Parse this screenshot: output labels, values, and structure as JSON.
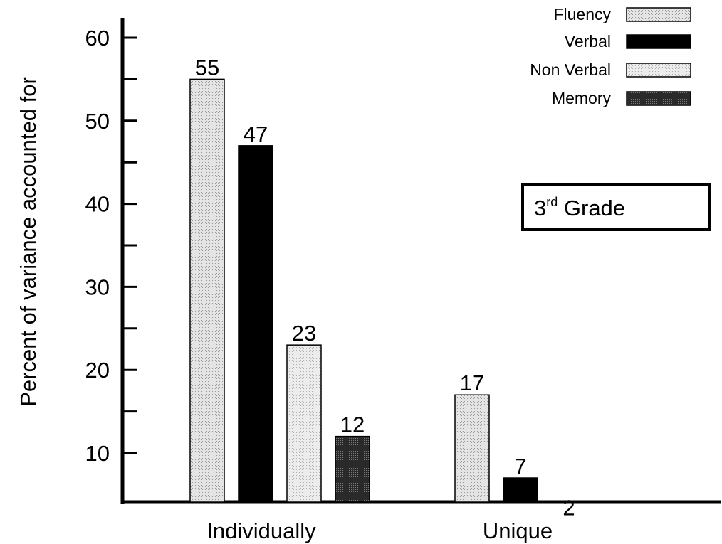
{
  "chart_data": {
    "type": "bar",
    "categories": [
      "Individually",
      "Unique"
    ],
    "ylabel": "Percent of variance accounted for",
    "xlabel": "",
    "ylim": [
      5,
      63
    ],
    "yticks": [
      10,
      20,
      30,
      40,
      50,
      60
    ],
    "grid": false,
    "legend_position": "top-right",
    "series": [
      {
        "name": "Fluency",
        "values": [
          55,
          17
        ],
        "pattern": "light-stipple",
        "color": "#d6d6d6"
      },
      {
        "name": "Verbal",
        "values": [
          47,
          7
        ],
        "pattern": "solid",
        "color": "#000000"
      },
      {
        "name": "Non Verbal",
        "values": [
          23,
          2
        ],
        "pattern": "light-stipple",
        "color": "#e0e0e0"
      },
      {
        "name": "Memory",
        "values": [
          12,
          null
        ],
        "pattern": "dark-stipple",
        "color": "#333333"
      }
    ],
    "annotation": {
      "text": "3",
      "superscript": "rd",
      "suffix": " Grade"
    }
  }
}
